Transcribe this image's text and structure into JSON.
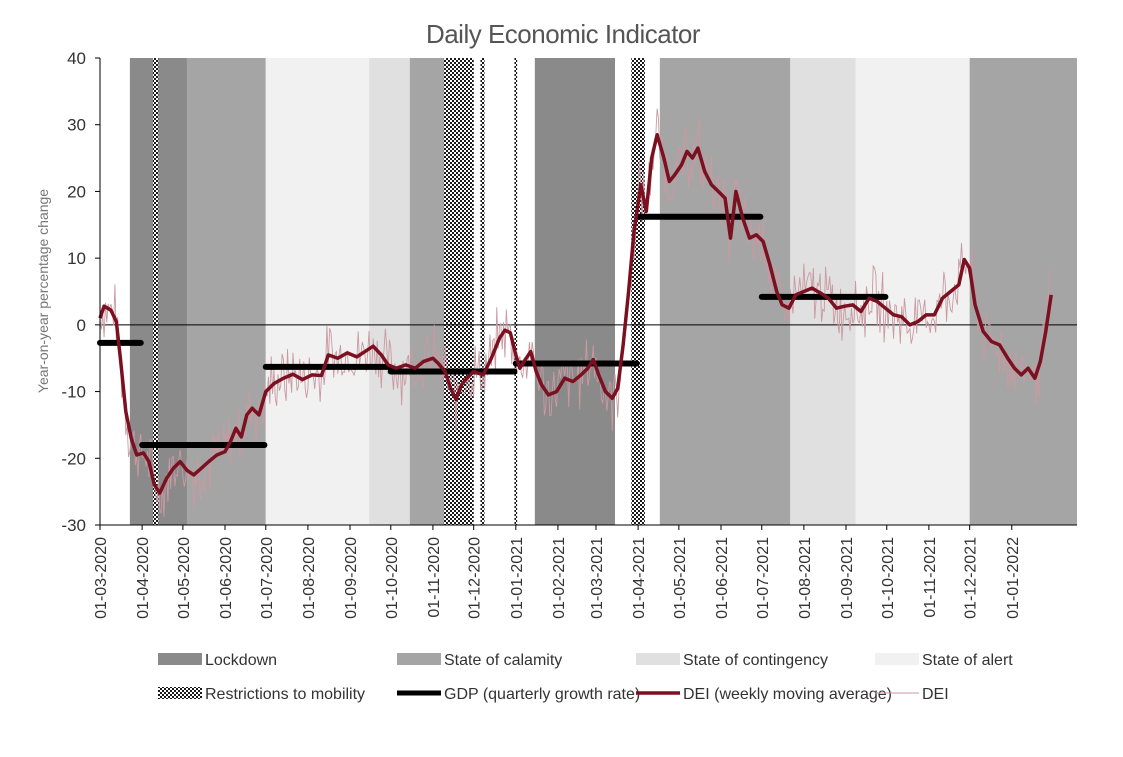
{
  "chart_data": {
    "type": "line",
    "title": "Daily Economic Indicator",
    "ylabel": "Year-on-year percentage change",
    "xlabel": "",
    "ylim": [
      -30,
      40
    ],
    "yticks": [
      -30,
      -20,
      -10,
      0,
      10,
      20,
      30,
      40
    ],
    "xlim": [
      "2020-03-01",
      "2022-02-18"
    ],
    "xticks": [
      "01-03-2020",
      "01-04-2020",
      "01-05-2020",
      "01-06-2020",
      "01-07-2020",
      "01-08-2020",
      "01-09-2020",
      "01-10-2020",
      "01-11-2020",
      "01-12-2020",
      "01-01-2021",
      "01-02-2021",
      "01-03-2021",
      "01-04-2021",
      "01-05-2021",
      "01-06-2021",
      "01-07-2021",
      "01-08-2021",
      "01-09-2021",
      "01-10-2021",
      "01-11-2021",
      "01-12-2021",
      "01-01-2022"
    ],
    "grid": false,
    "legend_position": "bottom",
    "colors": {
      "lockdown": "#8a8a8a",
      "state_of_calamity": "#a5a5a5",
      "state_of_contingency": "#e0e0e0",
      "state_of_alert": "#f1f1f1",
      "restrictions": "#222222",
      "gdp": "#000000",
      "dei_ma": "#7b1020",
      "dei": "#c99aa2"
    },
    "regions": [
      {
        "type": "lockdown",
        "start": "2020-03-23",
        "end": "2020-05-04"
      },
      {
        "type": "state_of_calamity",
        "start": "2020-05-04",
        "end": "2020-07-01"
      },
      {
        "type": "state_of_alert",
        "start": "2020-07-01",
        "end": "2020-09-15"
      },
      {
        "type": "state_of_contingency",
        "start": "2020-09-15",
        "end": "2020-10-15"
      },
      {
        "type": "state_of_calamity",
        "start": "2020-10-15",
        "end": "2020-12-01"
      },
      {
        "type": "lockdown",
        "start": "2021-01-15",
        "end": "2021-03-15"
      },
      {
        "type": "state_of_calamity",
        "start": "2021-04-17",
        "end": "2021-07-22"
      },
      {
        "type": "state_of_contingency",
        "start": "2021-07-22",
        "end": "2021-09-08"
      },
      {
        "type": "state_of_alert",
        "start": "2021-09-08",
        "end": "2021-12-01"
      },
      {
        "type": "state_of_calamity",
        "start": "2021-12-01",
        "end": "2022-02-18"
      }
    ],
    "restrictions": [
      {
        "start": "2020-04-09",
        "end": "2020-04-13"
      },
      {
        "start": "2020-11-09",
        "end": "2020-12-01"
      },
      {
        "start": "2020-12-06",
        "end": "2020-12-09"
      },
      {
        "start": "2020-12-31",
        "end": "2021-01-02"
      },
      {
        "start": "2021-03-27",
        "end": "2021-04-06"
      }
    ],
    "series": [
      {
        "name": "GDP (quarterly growth rate)",
        "segments": [
          {
            "start": "2020-03-01",
            "end": "2020-03-31",
            "value": -2.7
          },
          {
            "start": "2020-04-01",
            "end": "2020-06-30",
            "value": -18.0
          },
          {
            "start": "2020-07-01",
            "end": "2020-09-30",
            "value": -6.3
          },
          {
            "start": "2020-10-01",
            "end": "2020-12-31",
            "value": -7.0
          },
          {
            "start": "2021-01-01",
            "end": "2021-03-31",
            "value": -5.8
          },
          {
            "start": "2021-04-01",
            "end": "2021-06-30",
            "value": 16.2
          },
          {
            "start": "2021-07-01",
            "end": "2021-09-30",
            "value": 4.2
          }
        ]
      },
      {
        "name": "DEI (weekly moving average)",
        "points": [
          [
            "2020-03-01",
            1.0
          ],
          [
            "2020-03-04",
            2.8
          ],
          [
            "2020-03-09",
            2.2
          ],
          [
            "2020-03-13",
            0.5
          ],
          [
            "2020-03-16",
            -5.0
          ],
          [
            "2020-03-20",
            -13.0
          ],
          [
            "2020-03-24",
            -17.0
          ],
          [
            "2020-03-28",
            -19.5
          ],
          [
            "2020-04-02",
            -19.2
          ],
          [
            "2020-04-06",
            -20.5
          ],
          [
            "2020-04-10",
            -24.0
          ],
          [
            "2020-04-14",
            -25.2
          ],
          [
            "2020-04-19",
            -23.0
          ],
          [
            "2020-04-24",
            -21.5
          ],
          [
            "2020-04-29",
            -20.5
          ],
          [
            "2020-05-04",
            -21.8
          ],
          [
            "2020-05-09",
            -22.5
          ],
          [
            "2020-05-14",
            -21.6
          ],
          [
            "2020-05-20",
            -20.5
          ],
          [
            "2020-05-26",
            -19.5
          ],
          [
            "2020-06-01",
            -19.0
          ],
          [
            "2020-06-05",
            -17.5
          ],
          [
            "2020-06-09",
            -15.5
          ],
          [
            "2020-06-13",
            -16.8
          ],
          [
            "2020-06-17",
            -13.5
          ],
          [
            "2020-06-21",
            -12.5
          ],
          [
            "2020-06-26",
            -13.5
          ],
          [
            "2020-07-01",
            -10.0
          ],
          [
            "2020-07-07",
            -8.8
          ],
          [
            "2020-07-14",
            -8.0
          ],
          [
            "2020-07-21",
            -7.4
          ],
          [
            "2020-07-28",
            -8.2
          ],
          [
            "2020-08-04",
            -7.5
          ],
          [
            "2020-08-11",
            -7.6
          ],
          [
            "2020-08-16",
            -4.5
          ],
          [
            "2020-08-23",
            -5.0
          ],
          [
            "2020-08-30",
            -4.2
          ],
          [
            "2020-09-06",
            -4.8
          ],
          [
            "2020-09-12",
            -4.0
          ],
          [
            "2020-09-18",
            -3.2
          ],
          [
            "2020-09-24",
            -4.5
          ],
          [
            "2020-09-29",
            -6.0
          ],
          [
            "2020-10-05",
            -6.5
          ],
          [
            "2020-10-12",
            -6.0
          ],
          [
            "2020-10-19",
            -6.5
          ],
          [
            "2020-10-25",
            -5.5
          ],
          [
            "2020-11-01",
            -5.0
          ],
          [
            "2020-11-05",
            -5.8
          ],
          [
            "2020-11-10",
            -7.0
          ],
          [
            "2020-11-14",
            -9.5
          ],
          [
            "2020-11-18",
            -11.2
          ],
          [
            "2020-11-22",
            -9.0
          ],
          [
            "2020-11-26",
            -8.0
          ],
          [
            "2020-12-01",
            -7.0
          ],
          [
            "2020-12-08",
            -7.5
          ],
          [
            "2020-12-14",
            -5.0
          ],
          [
            "2020-12-20",
            -2.0
          ],
          [
            "2020-12-24",
            -0.8
          ],
          [
            "2020-12-28",
            -1.2
          ],
          [
            "2021-01-01",
            -4.5
          ],
          [
            "2021-01-04",
            -6.5
          ],
          [
            "2021-01-08",
            -5.2
          ],
          [
            "2021-01-12",
            -4.0
          ],
          [
            "2021-01-16",
            -7.0
          ],
          [
            "2021-01-20",
            -9.0
          ],
          [
            "2021-01-25",
            -10.5
          ],
          [
            "2021-01-31",
            -10.0
          ],
          [
            "2021-02-06",
            -8.0
          ],
          [
            "2021-02-12",
            -8.5
          ],
          [
            "2021-02-18",
            -7.5
          ],
          [
            "2021-02-23",
            -6.5
          ],
          [
            "2021-02-27",
            -5.2
          ],
          [
            "2021-03-03",
            -7.5
          ],
          [
            "2021-03-08",
            -10.0
          ],
          [
            "2021-03-13",
            -11.0
          ],
          [
            "2021-03-17",
            -9.5
          ],
          [
            "2021-03-21",
            -3.0
          ],
          [
            "2021-03-25",
            5.0
          ],
          [
            "2021-03-29",
            14.0
          ],
          [
            "2021-04-03",
            21.0
          ],
          [
            "2021-04-07",
            17.0
          ],
          [
            "2021-04-11",
            25.0
          ],
          [
            "2021-04-15",
            28.5
          ],
          [
            "2021-04-20",
            25.0
          ],
          [
            "2021-04-24",
            21.5
          ],
          [
            "2021-04-28",
            22.5
          ],
          [
            "2021-05-03",
            24.0
          ],
          [
            "2021-05-07",
            26.0
          ],
          [
            "2021-05-11",
            25.0
          ],
          [
            "2021-05-15",
            26.5
          ],
          [
            "2021-05-20",
            23.0
          ],
          [
            "2021-05-25",
            21.0
          ],
          [
            "2021-05-30",
            20.0
          ],
          [
            "2021-06-04",
            19.0
          ],
          [
            "2021-06-08",
            13.0
          ],
          [
            "2021-06-12",
            20.0
          ],
          [
            "2021-06-17",
            16.0
          ],
          [
            "2021-06-22",
            13.0
          ],
          [
            "2021-06-27",
            13.5
          ],
          [
            "2021-07-02",
            12.5
          ],
          [
            "2021-07-07",
            9.0
          ],
          [
            "2021-07-12",
            5.0
          ],
          [
            "2021-07-16",
            3.0
          ],
          [
            "2021-07-21",
            2.5
          ],
          [
            "2021-07-26",
            4.5
          ],
          [
            "2021-08-01",
            5.0
          ],
          [
            "2021-08-07",
            5.5
          ],
          [
            "2021-08-13",
            4.8
          ],
          [
            "2021-08-19",
            4.0
          ],
          [
            "2021-08-25",
            2.5
          ],
          [
            "2021-08-31",
            2.8
          ],
          [
            "2021-09-06",
            3.0
          ],
          [
            "2021-09-12",
            2.0
          ],
          [
            "2021-09-18",
            4.0
          ],
          [
            "2021-09-24",
            3.5
          ],
          [
            "2021-09-30",
            2.5
          ],
          [
            "2021-10-06",
            1.5
          ],
          [
            "2021-10-12",
            1.2
          ],
          [
            "2021-10-18",
            0.0
          ],
          [
            "2021-10-24",
            0.5
          ],
          [
            "2021-10-30",
            1.5
          ],
          [
            "2021-11-05",
            1.5
          ],
          [
            "2021-11-11",
            4.0
          ],
          [
            "2021-11-17",
            5.0
          ],
          [
            "2021-11-23",
            6.0
          ],
          [
            "2021-11-27",
            9.8
          ],
          [
            "2021-12-01",
            8.5
          ],
          [
            "2021-12-05",
            3.0
          ],
          [
            "2021-12-11",
            -1.0
          ],
          [
            "2021-12-17",
            -2.5
          ],
          [
            "2021-12-23",
            -3.0
          ],
          [
            "2021-12-29",
            -5.0
          ],
          [
            "2022-01-03",
            -6.5
          ],
          [
            "2022-01-08",
            -7.5
          ],
          [
            "2022-01-13",
            -6.5
          ],
          [
            "2022-01-18",
            -8.0
          ],
          [
            "2022-01-22",
            -5.5
          ],
          [
            "2022-01-26",
            -1.0
          ],
          [
            "2022-01-30",
            4.5
          ]
        ]
      },
      {
        "name": "DEI",
        "derived_from": "DEI (weekly moving average)",
        "note_volatility": 4.0
      }
    ],
    "legend": [
      {
        "label": "Lockdown",
        "kind": "box",
        "key": "lockdown"
      },
      {
        "label": "State of calamity",
        "kind": "box",
        "key": "state_of_calamity"
      },
      {
        "label": "State of contingency",
        "kind": "box",
        "key": "state_of_contingency"
      },
      {
        "label": "State of alert",
        "kind": "box",
        "key": "state_of_alert"
      },
      {
        "label": "Restrictions to mobility",
        "kind": "pattern",
        "key": "restrictions"
      },
      {
        "label": "GDP (quarterly growth rate)",
        "kind": "thick",
        "key": "gdp"
      },
      {
        "label": "DEI (weekly moving average)",
        "kind": "medium",
        "key": "dei_ma"
      },
      {
        "label": "DEI",
        "kind": "thin",
        "key": "dei"
      }
    ]
  }
}
